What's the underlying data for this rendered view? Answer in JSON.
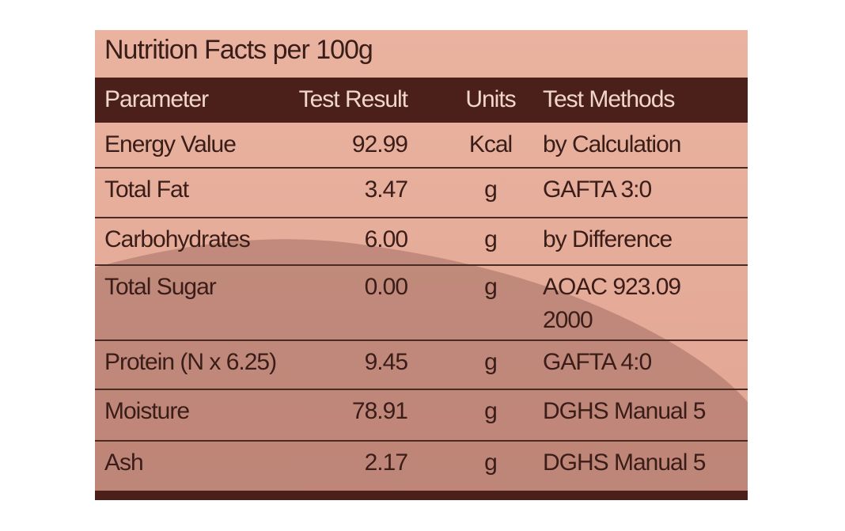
{
  "title": "Nutrition Facts per 100g",
  "table": {
    "header": [
      "Parameter",
      "Test Result",
      "Units",
      "Test Methods"
    ],
    "rows": [
      [
        "Energy Value",
        "92.99",
        "Kcal",
        [
          "by Calculation"
        ]
      ],
      [
        "Total Fat",
        "3.47",
        "g",
        [
          "GAFTA 3:0"
        ]
      ],
      [
        "Carbohydrates",
        "6.00",
        "g",
        [
          "by Difference"
        ]
      ],
      [
        "Total Sugar",
        "0.00",
        "g",
        [
          "AOAC 923.09",
          "2000"
        ]
      ],
      [
        "Protein (N x 6.25)",
        "9.45",
        "g",
        [
          "GAFTA 4:0"
        ]
      ],
      [
        "Moisture",
        "78.91",
        "g",
        [
          "DGHS Manual 5"
        ]
      ],
      [
        "Ash",
        "2.17",
        "g",
        [
          "DGHS Manual 5"
        ]
      ]
    ]
  }
}
